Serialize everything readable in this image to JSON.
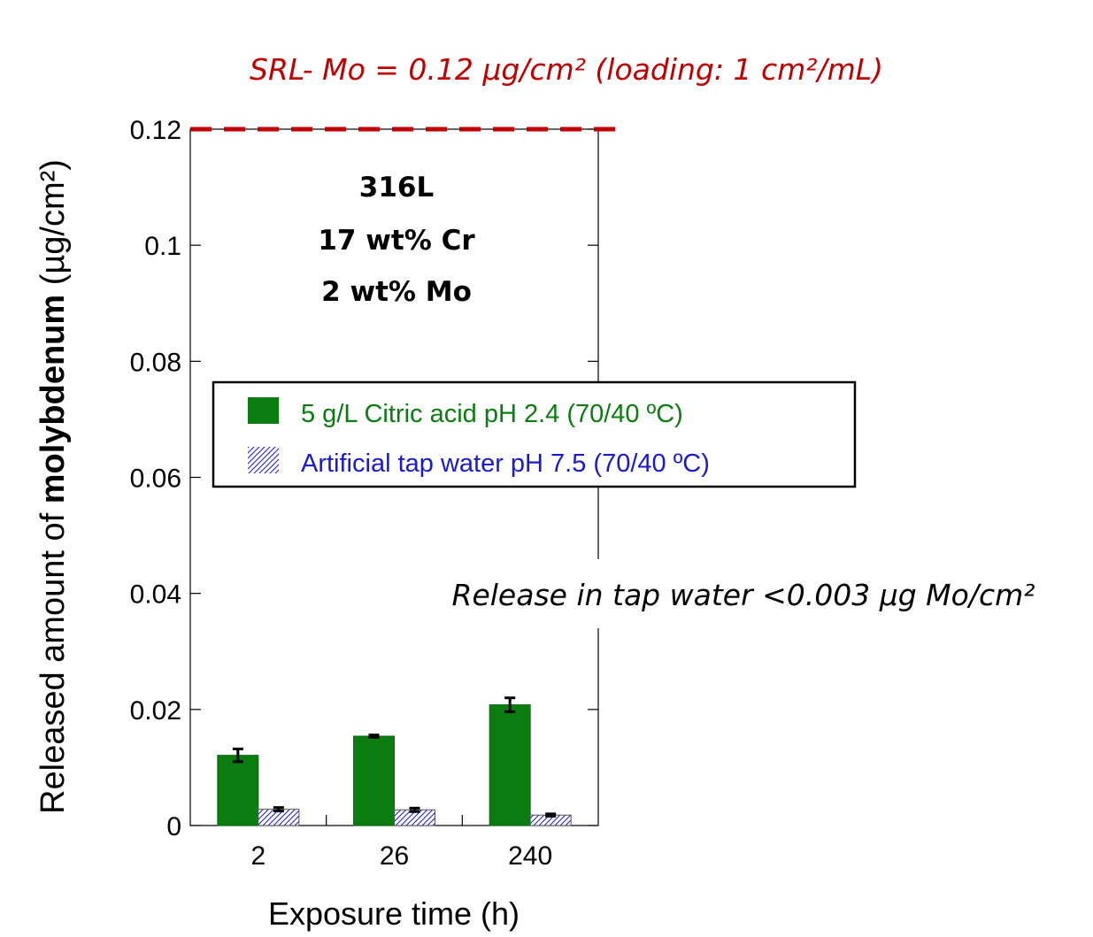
{
  "chart_data": {
    "type": "bar",
    "title": "SRL- Mo = 0.12 µg/cm² (loading: 1 cm²/mL)",
    "ylabel_prefix": "Released amount of ",
    "ylabel_bold": "molybdenum",
    "ylabel_unit": " (µg/cm²)",
    "xlabel": "Exposure time (h)",
    "categories": [
      "2",
      "26",
      "240"
    ],
    "ylim": [
      0,
      0.12
    ],
    "yticks": [
      "0",
      "0.02",
      "0.04",
      "0.06",
      "0.08",
      "0.1",
      "0.12"
    ],
    "ytick_values": [
      0,
      0.02,
      0.04,
      0.06,
      0.08,
      0.1,
      0.12
    ],
    "reference_line": {
      "value": 0.12,
      "color": "#c00000"
    },
    "material_lines": [
      "316L",
      "17 wt% Cr",
      "2 wt% Mo"
    ],
    "annotation": "Release in tap water <0.003 µg Mo/cm²",
    "grid": false,
    "legend_position": "center",
    "series": [
      {
        "name": "5 g/L Citric acid pH 2.4 (70/40 ºC)",
        "color": "#0a7c10",
        "pattern": "solid",
        "values": [
          0.0121,
          0.0154,
          0.0208
        ],
        "errors": [
          0.0011,
          0.0002,
          0.0012
        ]
      },
      {
        "name": "Artificial tap water pH 7.5 (70/40 ºC)",
        "color": "#1a1acc",
        "pattern": "hatched",
        "values": [
          0.0028,
          0.0027,
          0.0018
        ],
        "errors": [
          0.0003,
          0.0003,
          0.0002
        ]
      }
    ]
  }
}
